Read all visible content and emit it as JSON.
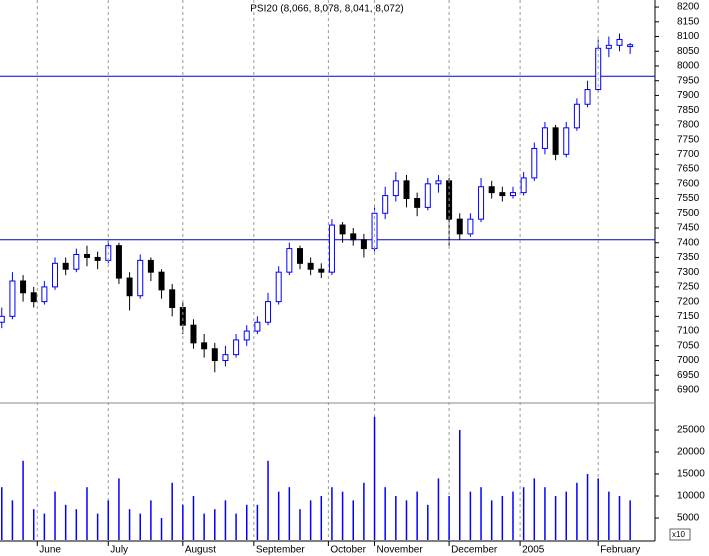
{
  "chart_data": [
    {
      "type": "candlestick",
      "title": "PSI20 (8,066, 8,078, 8,041, 8,072)",
      "x": [
        0,
        3,
        6,
        9,
        12,
        15,
        18,
        21,
        24,
        27,
        30,
        33,
        36,
        39,
        42,
        45,
        48,
        51,
        54,
        57,
        60,
        63,
        66,
        69,
        72,
        75,
        78,
        81,
        84,
        87,
        90,
        93,
        96,
        99,
        102,
        105,
        108,
        111,
        114,
        117,
        120,
        123,
        126,
        129,
        132,
        135,
        138,
        141,
        144,
        147,
        150,
        153,
        156,
        159,
        162,
        165,
        168,
        171,
        174,
        177
      ],
      "open": [
        7130,
        7150,
        7270,
        7230,
        7200,
        7250,
        7330,
        7310,
        7360,
        7350,
        7340,
        7390,
        7280,
        7220,
        7340,
        7300,
        7240,
        7180,
        7120,
        7060,
        7040,
        7000,
        7020,
        7070,
        7100,
        7130,
        7200,
        7300,
        7380,
        7330,
        7310,
        7300,
        7460,
        7430,
        7410,
        7380,
        7500,
        7560,
        7610,
        7550,
        7520,
        7600,
        7610,
        7480,
        7430,
        7480,
        7590,
        7570,
        7560,
        7570,
        7620,
        7720,
        7790,
        7700,
        7790,
        7870,
        7920,
        8060,
        8070,
        8066
      ],
      "high": [
        7180,
        7300,
        7290,
        7250,
        7270,
        7350,
        7350,
        7380,
        7390,
        7370,
        7410,
        7400,
        7300,
        7360,
        7350,
        7310,
        7260,
        7200,
        7140,
        7090,
        7060,
        7050,
        7090,
        7120,
        7150,
        7230,
        7320,
        7400,
        7390,
        7350,
        7330,
        7480,
        7470,
        7450,
        7430,
        7520,
        7590,
        7640,
        7630,
        7570,
        7620,
        7630,
        7620,
        7500,
        7500,
        7620,
        7610,
        7590,
        7590,
        7640,
        7740,
        7810,
        7800,
        7810,
        7890,
        7950,
        8090,
        8100,
        8110,
        8078
      ],
      "low": [
        7110,
        7140,
        7200,
        7180,
        7190,
        7240,
        7290,
        7300,
        7320,
        7310,
        7330,
        7260,
        7170,
        7210,
        7270,
        7210,
        7150,
        7090,
        7040,
        7010,
        6960,
        6980,
        7010,
        7050,
        7090,
        7120,
        7190,
        7290,
        7310,
        7290,
        7280,
        7290,
        7400,
        7390,
        7350,
        7370,
        7480,
        7540,
        7520,
        7490,
        7510,
        7570,
        7390,
        7410,
        7420,
        7470,
        7550,
        7540,
        7550,
        7560,
        7610,
        7700,
        7680,
        7690,
        7780,
        7860,
        7910,
        8030,
        8050,
        8041
      ],
      "close": [
        7150,
        7270,
        7230,
        7200,
        7250,
        7330,
        7310,
        7360,
        7350,
        7340,
        7390,
        7280,
        7220,
        7340,
        7300,
        7240,
        7180,
        7120,
        7060,
        7040,
        7000,
        7020,
        7070,
        7100,
        7130,
        7200,
        7300,
        7380,
        7330,
        7310,
        7300,
        7460,
        7430,
        7410,
        7380,
        7500,
        7560,
        7610,
        7550,
        7520,
        7600,
        7610,
        7480,
        7430,
        7480,
        7590,
        7570,
        7560,
        7570,
        7620,
        7720,
        7790,
        7700,
        7790,
        7870,
        7920,
        8060,
        8070,
        8090,
        8072
      ],
      "up_color": "#0000ff",
      "down_color": "#000000",
      "reference_lines": [
        7410,
        7965
      ],
      "reference_color": "#0000cc",
      "xlim": [
        -0.5,
        184
      ],
      "ylim": [
        6866,
        8224
      ],
      "yticks": [
        6900,
        6950,
        7000,
        7050,
        7100,
        7150,
        7200,
        7250,
        7300,
        7350,
        7400,
        7450,
        7500,
        7550,
        7600,
        7650,
        7700,
        7750,
        7800,
        7850,
        7900,
        7950,
        8000,
        8050,
        8100,
        8150,
        8200
      ]
    },
    {
      "type": "bar",
      "unit_label": "x10",
      "x": [
        0,
        3,
        6,
        9,
        12,
        15,
        18,
        21,
        24,
        27,
        30,
        33,
        36,
        39,
        42,
        45,
        48,
        51,
        54,
        57,
        60,
        63,
        66,
        69,
        72,
        75,
        78,
        81,
        84,
        87,
        90,
        93,
        96,
        99,
        102,
        105,
        108,
        111,
        114,
        117,
        120,
        123,
        126,
        129,
        132,
        135,
        138,
        141,
        144,
        147,
        150,
        153,
        156,
        159,
        162,
        165,
        168,
        171,
        174,
        177
      ],
      "values": [
        12000,
        9000,
        18000,
        7000,
        6000,
        11000,
        8000,
        7000,
        12000,
        6000,
        9000,
        14000,
        7000,
        6000,
        9000,
        5000,
        13000,
        8000,
        10000,
        6000,
        7000,
        9000,
        6000,
        8000,
        8000,
        18000,
        11000,
        12000,
        7000,
        9000,
        10000,
        12000,
        11000,
        9000,
        13000,
        28000,
        12000,
        10000,
        9000,
        11000,
        8000,
        14000,
        10000,
        25000,
        11000,
        12000,
        9000,
        10000,
        11000,
        12000,
        14000,
        12000,
        10000,
        11000,
        13000,
        15000,
        14000,
        11000,
        10000,
        9000
      ],
      "color": "#0000ff",
      "xlim": [
        -0.5,
        184
      ],
      "ylim": [
        0,
        30000
      ],
      "xticks": [
        {
          "value": 10,
          "label": "June"
        },
        {
          "value": 30,
          "label": "July"
        },
        {
          "value": 51,
          "label": "August"
        },
        {
          "value": 71,
          "label": "September"
        },
        {
          "value": 92,
          "label": "October"
        },
        {
          "value": 105,
          "label": "November"
        },
        {
          "value": 126,
          "label": "December"
        },
        {
          "value": 146,
          "label": "2005"
        },
        {
          "value": 168,
          "label": "February"
        }
      ],
      "yticks": [
        5000,
        10000,
        15000,
        20000,
        25000
      ]
    }
  ]
}
